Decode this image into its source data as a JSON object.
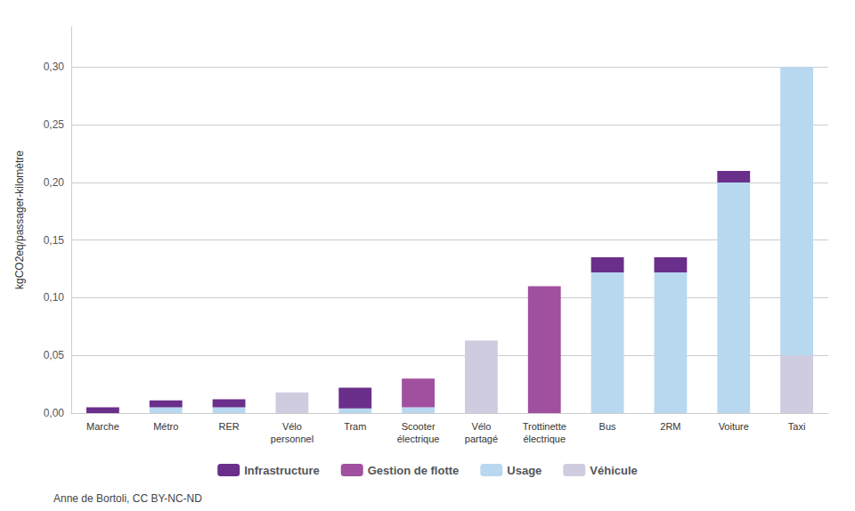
{
  "chart_data": {
    "type": "bar",
    "stacked": true,
    "categories": [
      "Marche",
      "Métro",
      "RER",
      "Vélo\npersonnel",
      "Tram",
      "Scooter\nélectrique",
      "Vélo\npartagé",
      "Trottinette\nélectrique",
      "Bus",
      "2RM",
      "Voiture",
      "Taxi"
    ],
    "series": [
      {
        "name": "Véhicule",
        "color": "#d0cce0",
        "values": [
          0.0,
          0.0,
          0.0,
          0.018,
          0.0,
          0.0,
          0.063,
          0.0,
          0.0,
          0.0,
          0.0,
          0.05
        ]
      },
      {
        "name": "Usage",
        "color": "#b8d8f0",
        "values": [
          0.0,
          0.005,
          0.005,
          0.0,
          0.004,
          0.005,
          0.0,
          0.0,
          0.122,
          0.122,
          0.2,
          0.25
        ]
      },
      {
        "name": "Gestion de flotte",
        "color": "#a0509e",
        "values": [
          0.0,
          0.0,
          0.0,
          0.0,
          0.0,
          0.025,
          0.0,
          0.11,
          0.0,
          0.0,
          0.0,
          0.0
        ]
      },
      {
        "name": "Infrastructure",
        "color": "#6a2f8a",
        "values": [
          0.005,
          0.006,
          0.007,
          0.0,
          0.018,
          0.0,
          0.0,
          0.0,
          0.013,
          0.013,
          0.01,
          0.0
        ]
      }
    ],
    "ylabel": "kgCO2eq/passager-kilomètre",
    "ylim": [
      0,
      0.335
    ],
    "yticks": [
      {
        "value": 0.0,
        "label": "0,00"
      },
      {
        "value": 0.05,
        "label": "0,05"
      },
      {
        "value": 0.1,
        "label": "0,10"
      },
      {
        "value": 0.15,
        "label": "0,15"
      },
      {
        "value": 0.2,
        "label": "0,20"
      },
      {
        "value": 0.25,
        "label": "0,25"
      },
      {
        "value": 0.3,
        "label": "0,30"
      }
    ],
    "grid": true,
    "legend": "bottom",
    "caption": "Anne de Bortoli, CC BY-NC-ND"
  }
}
